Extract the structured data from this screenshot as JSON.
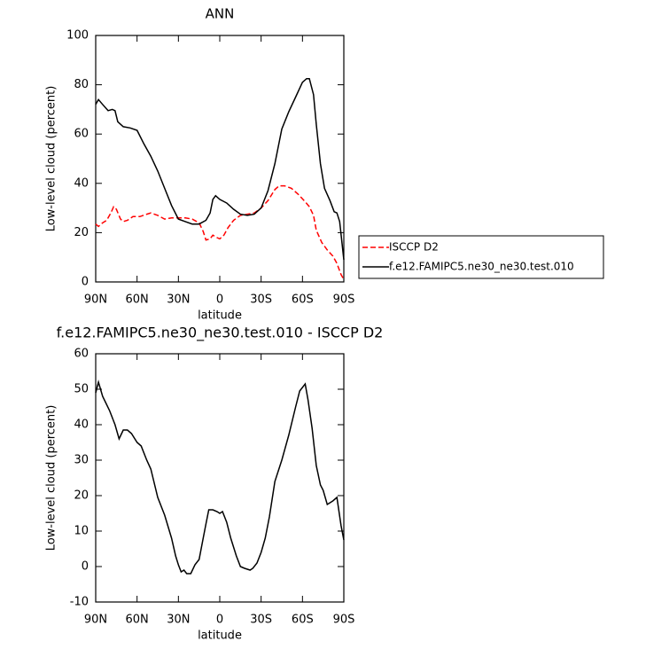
{
  "chart_data": [
    {
      "type": "line",
      "title": "ANN",
      "xlabel": "latitude",
      "ylabel": "Low-level cloud (percent)",
      "xlim": [
        90,
        -90
      ],
      "xticks": [
        {
          "value": 90,
          "label": "90N"
        },
        {
          "value": 60,
          "label": "60N"
        },
        {
          "value": 30,
          "label": "30N"
        },
        0,
        {
          "value": -30,
          "label": "30S"
        },
        {
          "value": -60,
          "label": "60S"
        },
        {
          "value": -90,
          "label": "90S"
        }
      ],
      "ylim": [
        0,
        100
      ],
      "yticks": [
        0,
        20,
        40,
        60,
        80,
        100
      ],
      "legend": "right",
      "series": [
        {
          "name": "ISCCP D2",
          "color": "#ff0000",
          "line_style": "dashed",
          "x": [
            90,
            88,
            85,
            82,
            79,
            77,
            75,
            72,
            70,
            67,
            63,
            58,
            53,
            50,
            45,
            40,
            35,
            30,
            25,
            20,
            15,
            12,
            10,
            7,
            5,
            2,
            0,
            -3,
            -6,
            -10,
            -15,
            -20,
            -25,
            -30,
            -35,
            -40,
            -43,
            -47,
            -52,
            -57,
            -62,
            -65,
            -68,
            -70,
            -74,
            -78,
            -82,
            -85,
            -88,
            -90
          ],
          "values": [
            23.5,
            22.5,
            24,
            25,
            28,
            30.5,
            29.5,
            25.5,
            24.5,
            25,
            26.5,
            26.5,
            27.5,
            28,
            27,
            25.5,
            26,
            26,
            26,
            25.5,
            24,
            20.5,
            17,
            17.5,
            19,
            18,
            17.5,
            19,
            22,
            25,
            27,
            27.5,
            28,
            30,
            33,
            37.5,
            39,
            39,
            38,
            35.5,
            32.5,
            30.5,
            27,
            21,
            16,
            13,
            10.5,
            7.5,
            3,
            1
          ]
        },
        {
          "name": "f.e12.FAMIPC5.ne30_ne30.test.010",
          "color": "#000000",
          "line_style": "solid",
          "x": [
            90,
            88,
            85,
            81,
            78,
            76,
            74,
            70,
            65,
            60,
            55,
            50,
            45,
            40,
            35,
            30,
            25,
            20,
            15,
            10,
            7,
            5,
            3,
            0,
            -5,
            -10,
            -15,
            -20,
            -25,
            -30,
            -35,
            -40,
            -45,
            -50,
            -55,
            -60,
            -63,
            -65,
            -68,
            -70,
            -73,
            -76,
            -80,
            -83,
            -85,
            -87,
            -90
          ],
          "values": [
            72,
            74,
            72,
            69.5,
            70,
            69.5,
            65,
            63,
            62.5,
            61.5,
            56,
            51,
            45,
            38,
            31,
            25.5,
            24.5,
            23.5,
            23.5,
            25,
            28,
            33.5,
            35,
            33.5,
            32,
            29.5,
            27.5,
            27,
            27.5,
            30,
            37,
            48,
            62,
            69,
            75,
            81,
            82.5,
            82.5,
            76,
            64,
            48,
            38,
            33,
            28.5,
            28,
            24.5,
            9
          ]
        }
      ]
    },
    {
      "type": "line",
      "title": "f.e12.FAMIPC5.ne30_ne30.test.010 - ISCCP D2",
      "xlabel": "latitude",
      "ylabel": "Low-level cloud (percent)",
      "xlim": [
        90,
        -90
      ],
      "xticks": [
        {
          "value": 90,
          "label": "90N"
        },
        {
          "value": 60,
          "label": "60N"
        },
        {
          "value": 30,
          "label": "30N"
        },
        0,
        {
          "value": -30,
          "label": "30S"
        },
        {
          "value": -60,
          "label": "60S"
        },
        {
          "value": -90,
          "label": "90S"
        }
      ],
      "ylim": [
        -10,
        60
      ],
      "yticks": [
        -10,
        0,
        10,
        20,
        30,
        40,
        50,
        60
      ],
      "series": [
        {
          "color": "#000000",
          "line_style": "solid",
          "x": [
            90,
            88,
            85,
            80,
            76,
            73,
            70,
            67,
            64,
            60,
            57,
            53,
            50,
            45,
            40,
            35,
            32,
            30,
            28,
            26,
            24,
            21,
            18,
            15,
            12,
            10,
            8,
            5,
            2,
            0,
            -2,
            -5,
            -8,
            -12,
            -15,
            -18,
            -22,
            -24,
            -27,
            -30,
            -33,
            -36,
            -40,
            -45,
            -50,
            -55,
            -58,
            -62,
            -64,
            -67,
            -70,
            -73,
            -75,
            -78,
            -82,
            -85,
            -88,
            -90
          ],
          "values": [
            49,
            52,
            48,
            44,
            40,
            36,
            38.5,
            38.5,
            37.5,
            35,
            34,
            30,
            27.5,
            19.5,
            14.5,
            8,
            3,
            0.5,
            -1.5,
            -1,
            -2,
            -2,
            0.5,
            2,
            8,
            12,
            16,
            16,
            15.5,
            15,
            15.5,
            12.5,
            8,
            3,
            0,
            -0.5,
            -1,
            -0.5,
            1,
            4,
            8,
            14,
            24,
            30,
            37,
            45,
            49.5,
            51.5,
            47,
            39,
            28.5,
            23,
            21.5,
            17.5,
            18.5,
            19.5,
            11.5,
            7.5
          ]
        }
      ]
    }
  ]
}
